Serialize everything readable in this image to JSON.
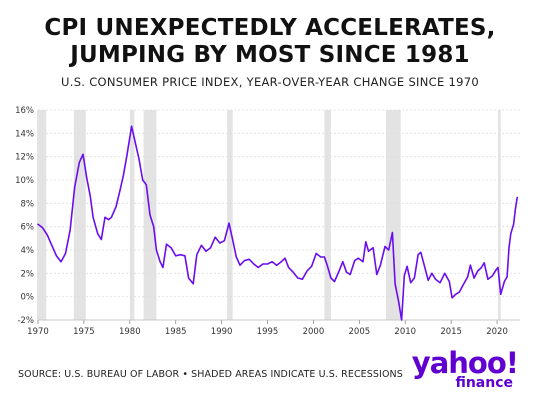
{
  "header": {
    "title_line1": "CPI UNEXPECTEDLY ACCELERATES,",
    "title_line2": "JUMPING BY MOST SINCE 1981",
    "subtitle": "U.S. CONSUMER PRICE INDEX, YEAR-OVER-YEAR CHANGE SINCE 1970"
  },
  "footer": {
    "source": "SOURCE: U.S. BUREAU OF LABOR • SHADED AREAS INDICATE U.S. RECESSIONS"
  },
  "logo": {
    "main": "yahoo!",
    "sub": "finance"
  },
  "colors": {
    "line": "#6a0dee",
    "recession": "#e3e3e3",
    "grid": "#dddddd",
    "logo": "#6001d2"
  },
  "chart_data": {
    "type": "line",
    "title": "CPI UNEXPECTEDLY ACCELERATES, JUMPING BY MOST SINCE 1981",
    "subtitle": "U.S. CONSUMER PRICE INDEX, YEAR-OVER-YEAR CHANGE SINCE 1970",
    "xlabel": "",
    "ylabel": "",
    "xlim": [
      1970,
      2022.5
    ],
    "ylim": [
      -2,
      16
    ],
    "x_ticks": [
      "1970",
      "1975",
      "1980",
      "1985",
      "1990",
      "1995",
      "2000",
      "2005",
      "2010",
      "2015",
      "2020"
    ],
    "y_ticks": [
      "16%",
      "14%",
      "12%",
      "10%",
      "8%",
      "6%",
      "4%",
      "2%",
      "0%",
      "-2%"
    ],
    "grid": true,
    "recessions": [
      [
        1969.9,
        1970.9
      ],
      [
        1973.9,
        1975.2
      ],
      [
        1980.0,
        1980.5
      ],
      [
        1981.5,
        1982.9
      ],
      [
        1990.6,
        1991.2
      ],
      [
        2001.2,
        2001.9
      ],
      [
        2007.9,
        2009.5
      ],
      [
        2020.1,
        2020.4
      ]
    ],
    "series": [
      {
        "values": [
          [
            1970.0,
            6.2
          ],
          [
            1970.5,
            5.9
          ],
          [
            1971.0,
            5.3
          ],
          [
            1971.5,
            4.4
          ],
          [
            1972.0,
            3.5
          ],
          [
            1972.5,
            3.0
          ],
          [
            1973.0,
            3.7
          ],
          [
            1973.5,
            5.7
          ],
          [
            1974.0,
            9.4
          ],
          [
            1974.5,
            11.5
          ],
          [
            1974.9,
            12.2
          ],
          [
            1975.3,
            10.2
          ],
          [
            1975.7,
            8.6
          ],
          [
            1976.0,
            6.8
          ],
          [
            1976.5,
            5.4
          ],
          [
            1976.9,
            4.9
          ],
          [
            1977.3,
            6.8
          ],
          [
            1977.7,
            6.6
          ],
          [
            1978.0,
            6.8
          ],
          [
            1978.5,
            7.7
          ],
          [
            1978.9,
            9.0
          ],
          [
            1979.3,
            10.4
          ],
          [
            1979.7,
            12.2
          ],
          [
            1980.2,
            14.6
          ],
          [
            1980.6,
            13.2
          ],
          [
            1981.0,
            11.8
          ],
          [
            1981.4,
            10.0
          ],
          [
            1981.8,
            9.6
          ],
          [
            1982.2,
            7.0
          ],
          [
            1982.6,
            6.0
          ],
          [
            1982.9,
            4.0
          ],
          [
            1983.3,
            3.0
          ],
          [
            1983.6,
            2.5
          ],
          [
            1984.0,
            4.5
          ],
          [
            1984.5,
            4.2
          ],
          [
            1985.0,
            3.5
          ],
          [
            1985.5,
            3.6
          ],
          [
            1986.0,
            3.5
          ],
          [
            1986.4,
            1.6
          ],
          [
            1986.9,
            1.1
          ],
          [
            1987.3,
            3.6
          ],
          [
            1987.8,
            4.4
          ],
          [
            1988.3,
            3.9
          ],
          [
            1988.8,
            4.2
          ],
          [
            1989.3,
            5.1
          ],
          [
            1989.8,
            4.6
          ],
          [
            1990.3,
            4.8
          ],
          [
            1990.8,
            6.3
          ],
          [
            1991.2,
            4.9
          ],
          [
            1991.6,
            3.4
          ],
          [
            1992.0,
            2.7
          ],
          [
            1992.5,
            3.1
          ],
          [
            1993.0,
            3.2
          ],
          [
            1993.5,
            2.8
          ],
          [
            1994.0,
            2.5
          ],
          [
            1994.5,
            2.8
          ],
          [
            1995.0,
            2.8
          ],
          [
            1995.5,
            3.0
          ],
          [
            1996.0,
            2.7
          ],
          [
            1996.5,
            3.0
          ],
          [
            1996.9,
            3.3
          ],
          [
            1997.3,
            2.5
          ],
          [
            1997.8,
            2.1
          ],
          [
            1998.3,
            1.6
          ],
          [
            1998.8,
            1.5
          ],
          [
            1999.3,
            2.2
          ],
          [
            1999.8,
            2.6
          ],
          [
            2000.3,
            3.7
          ],
          [
            2000.8,
            3.4
          ],
          [
            2001.2,
            3.4
          ],
          [
            2001.5,
            2.7
          ],
          [
            2001.9,
            1.6
          ],
          [
            2002.3,
            1.3
          ],
          [
            2002.8,
            2.2
          ],
          [
            2003.2,
            3.0
          ],
          [
            2003.6,
            2.1
          ],
          [
            2004.0,
            1.9
          ],
          [
            2004.5,
            3.1
          ],
          [
            2004.9,
            3.3
          ],
          [
            2005.4,
            3.0
          ],
          [
            2005.7,
            4.7
          ],
          [
            2006.0,
            3.9
          ],
          [
            2006.5,
            4.2
          ],
          [
            2006.9,
            1.9
          ],
          [
            2007.3,
            2.7
          ],
          [
            2007.8,
            4.3
          ],
          [
            2008.2,
            4.0
          ],
          [
            2008.6,
            5.5
          ],
          [
            2008.9,
            1.1
          ],
          [
            2009.3,
            -0.5
          ],
          [
            2009.6,
            -2.0
          ],
          [
            2009.9,
            1.8
          ],
          [
            2010.2,
            2.6
          ],
          [
            2010.6,
            1.2
          ],
          [
            2011.0,
            1.6
          ],
          [
            2011.4,
            3.6
          ],
          [
            2011.7,
            3.8
          ],
          [
            2012.0,
            2.9
          ],
          [
            2012.5,
            1.4
          ],
          [
            2012.9,
            2.0
          ],
          [
            2013.3,
            1.5
          ],
          [
            2013.8,
            1.2
          ],
          [
            2014.3,
            2.0
          ],
          [
            2014.8,
            1.3
          ],
          [
            2015.1,
            -0.1
          ],
          [
            2015.5,
            0.2
          ],
          [
            2015.9,
            0.4
          ],
          [
            2016.3,
            1.0
          ],
          [
            2016.8,
            1.7
          ],
          [
            2017.1,
            2.7
          ],
          [
            2017.5,
            1.6
          ],
          [
            2017.9,
            2.2
          ],
          [
            2018.3,
            2.5
          ],
          [
            2018.6,
            2.9
          ],
          [
            2019.0,
            1.5
          ],
          [
            2019.5,
            1.8
          ],
          [
            2019.9,
            2.3
          ],
          [
            2020.1,
            2.5
          ],
          [
            2020.4,
            0.2
          ],
          [
            2020.8,
            1.3
          ],
          [
            2021.1,
            1.7
          ],
          [
            2021.3,
            4.2
          ],
          [
            2021.5,
            5.4
          ],
          [
            2021.8,
            6.2
          ],
          [
            2022.0,
            7.5
          ],
          [
            2022.2,
            8.5
          ]
        ]
      }
    ]
  }
}
